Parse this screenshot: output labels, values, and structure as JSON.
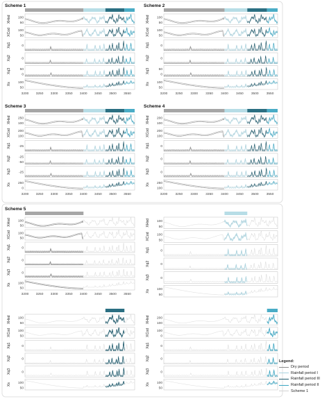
{
  "chart_data": {
    "type": "line",
    "x_ticks": [
      3200,
      3250,
      3300,
      3350,
      3400,
      3450,
      3500,
      3550
    ],
    "xlim": [
      3200,
      3575
    ],
    "period_bar_colors": {
      "dry": "#a6a6a6",
      "rain1": "#b7dde6",
      "rain3": "#2b6f82",
      "rain2": "#4aacc6"
    },
    "series_colors": {
      "Dry period": "#8c8c8c",
      "Rainfall period I": "#a9d3df",
      "Rainfall period III": "#1f5a6c",
      "Rainfall period II": "#3aa5c2",
      "Scheme 1": "#d3d3d3"
    },
    "panels": [
      {
        "title": "Scheme 1",
        "rows": [
          {
            "label": "XHsd",
            "ticks": [
              "100",
              "50"
            ]
          },
          {
            "label": "XCod",
            "ticks": [
              "100",
              "50"
            ]
          },
          {
            "label": "Xq1",
            "ticks": [
              "0"
            ]
          },
          {
            "label": "Xq2",
            "ticks": [
              "0"
            ]
          },
          {
            "label": "Xq3",
            "ticks": [
              "50",
              "0"
            ]
          },
          {
            "label": "Xs",
            "ticks": [
              "100",
              "50"
            ]
          }
        ]
      },
      {
        "title": "Scheme 2",
        "rows": [
          {
            "label": "XHsd",
            "ticks": [
              "100",
              "50"
            ]
          },
          {
            "label": "XCod",
            "ticks": [
              "100",
              "50"
            ]
          },
          {
            "label": "Xq1",
            "ticks": [
              "0"
            ]
          },
          {
            "label": "Xq2",
            "ticks": [
              "0"
            ]
          },
          {
            "label": "Xq3",
            "ticks": [
              "50",
              "0"
            ]
          },
          {
            "label": "Xs",
            "ticks": [
              "100",
              "50"
            ]
          }
        ]
      },
      {
        "title": "Scheme 3",
        "rows": [
          {
            "label": "XHsd",
            "ticks": [
              "250",
              "100"
            ]
          },
          {
            "label": "XCod",
            "ticks": [
              "200",
              "100"
            ]
          },
          {
            "label": "Xq1",
            "ticks": [
              "-25"
            ]
          },
          {
            "label": "Xq2",
            "ticks": [
              "-25",
              "-50"
            ]
          },
          {
            "label": "Xq3",
            "ticks": [
              "-25"
            ]
          },
          {
            "label": "Xs",
            "ticks": [
              "250",
              "0"
            ]
          }
        ]
      },
      {
        "title": "Scheme 4",
        "rows": [
          {
            "label": "XHsd",
            "ticks": [
              "200",
              "100"
            ]
          },
          {
            "label": "XCod",
            "ticks": [
              "200",
              "100"
            ]
          },
          {
            "label": "Xq1",
            "ticks": [
              "0"
            ]
          },
          {
            "label": "Xq2",
            "ticks": [
              "0"
            ]
          },
          {
            "label": "Xq3",
            "ticks": [
              "0"
            ]
          },
          {
            "label": "Xs",
            "ticks": [
              "250",
              "100"
            ]
          }
        ]
      },
      {
        "title": "Scheme 5",
        "rows": [
          {
            "label": "XHsd",
            "ticks": [
              "100",
              "50"
            ]
          },
          {
            "label": "XCod",
            "ticks": [
              "100",
              "50"
            ]
          },
          {
            "label": "Xq1",
            "ticks": [
              "0"
            ]
          },
          {
            "label": "Xq2",
            "ticks": [
              "0"
            ]
          },
          {
            "label": "Xq3",
            "ticks": [
              "0"
            ]
          },
          {
            "label": "Xs",
            "ticks": [
              "100",
              "50"
            ]
          }
        ]
      },
      {
        "title": "",
        "rows": [
          {
            "label": "XHsd",
            "ticks": [
              "100",
              "50"
            ]
          },
          {
            "label": "XCod",
            "ticks": [
              "100",
              "50"
            ]
          },
          {
            "label": "Xq1",
            "ticks": [
              "0"
            ]
          },
          {
            "label": "Xq2",
            "ticks": [
              "0"
            ]
          },
          {
            "label": "Xq3",
            "ticks": [
              "0"
            ]
          },
          {
            "label": "Xs",
            "ticks": [
              "100",
              "50"
            ]
          }
        ]
      },
      {
        "title": "",
        "rows": [
          {
            "label": "XHsd",
            "ticks": [
              "100",
              "50"
            ]
          },
          {
            "label": "XCod",
            "ticks": [
              "100",
              "50"
            ]
          },
          {
            "label": "Xq1",
            "ticks": [
              "0"
            ]
          },
          {
            "label": "Xq2",
            "ticks": [
              "0"
            ]
          },
          {
            "label": "Xq3",
            "ticks": [
              "0"
            ]
          },
          {
            "label": "Xs",
            "ticks": [
              "100",
              "50"
            ]
          }
        ]
      },
      {
        "title": "",
        "rows": [
          {
            "label": "XHsd",
            "ticks": [
              "200",
              "100"
            ]
          },
          {
            "label": "XCod",
            "ticks": [
              "100",
              "0"
            ]
          },
          {
            "label": "Xq1",
            "ticks": [
              "0"
            ]
          },
          {
            "label": "Xq2",
            "ticks": [
              "0"
            ]
          },
          {
            "label": "Xq3",
            "ticks": [
              "0"
            ]
          },
          {
            "label": "Xs",
            "ticks": [
              "100",
              "50"
            ]
          }
        ]
      }
    ],
    "legend": {
      "title": "Legend:",
      "items": [
        "Dry period",
        "Rainfall period I",
        "Rainfall period III",
        "Rainfall period II",
        "Scheme 1"
      ]
    }
  }
}
